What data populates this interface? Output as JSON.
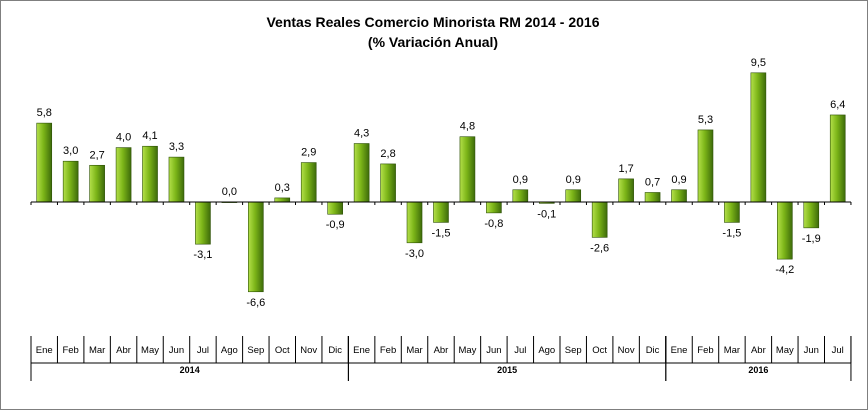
{
  "chart_data": {
    "type": "bar",
    "title": "Ventas Reales Comercio Minorista RM 2014 - 2016",
    "subtitle": "(% Variación Anual)",
    "years": [
      {
        "label": "2014",
        "months": [
          "Ene",
          "Feb",
          "Mar",
          "Abr",
          "May",
          "Jun",
          "Jul",
          "Ago",
          "Sep",
          "Oct",
          "Nov",
          "Dic"
        ]
      },
      {
        "label": "2015",
        "months": [
          "Ene",
          "Feb",
          "Mar",
          "Abr",
          "May",
          "Jun",
          "Jul",
          "Ago",
          "Sep",
          "Oct",
          "Nov",
          "Dic"
        ]
      },
      {
        "label": "2016",
        "months": [
          "Ene",
          "Feb",
          "Mar",
          "Abr",
          "May",
          "Jun",
          "Jul"
        ]
      }
    ],
    "values": [
      5.8,
      3.0,
      2.7,
      4.0,
      4.1,
      3.3,
      -3.1,
      0.0,
      -6.6,
      0.3,
      2.9,
      -0.9,
      4.3,
      2.8,
      -3.0,
      -1.5,
      4.8,
      -0.8,
      0.9,
      -0.1,
      0.9,
      -2.6,
      1.7,
      0.7,
      0.9,
      5.3,
      -1.5,
      9.5,
      -4.2,
      -1.9,
      6.4
    ],
    "value_labels": [
      "5,8",
      "3,0",
      "2,7",
      "4,0",
      "4,1",
      "3,3",
      "-3,1",
      "0,0",
      "-6,6",
      "0,3",
      "2,9",
      "-0,9",
      "4,3",
      "2,8",
      "-3,0",
      "-1,5",
      "4,8",
      "-0,8",
      "0,9",
      "-0,1",
      "0,9",
      "-2,6",
      "1,7",
      "0,7",
      "0,9",
      "5,3",
      "-1,5",
      "9,5",
      "-4,2",
      "-1,9",
      "6,4"
    ],
    "ylim": [
      -6.6,
      9.5
    ],
    "grid": false,
    "legend": "none",
    "colors": {
      "bar_light": "#b4e04a",
      "bar_mid": "#7cb518",
      "bar_dark": "#3d6b0a",
      "bar_stroke": "#2d5006",
      "axis": "#000000"
    }
  }
}
